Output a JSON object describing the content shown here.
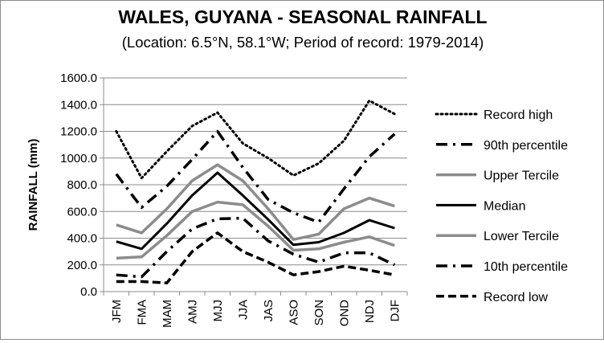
{
  "chart_data": {
    "type": "line",
    "title": "WALES, GUYANA - SEASONAL RAINFALL",
    "subtitle": "(Location: 6.5°N, 58.1°W; Period of record: 1979-2014)",
    "ylabel": "RAINFALL (mm)",
    "xlabel": "",
    "categories": [
      "JFM",
      "FMA",
      "MAM",
      "AMJ",
      "MJJ",
      "JJA",
      "JAS",
      "ASO",
      "SON",
      "OND",
      "NDJ",
      "DJF"
    ],
    "ylim": [
      0,
      1600
    ],
    "yticks": [
      "0.0",
      "200.0",
      "400.0",
      "600.0",
      "800.0",
      "1000.0",
      "1200.0",
      "1400.0",
      "1600.0"
    ],
    "grid": true,
    "legend_position": "right",
    "series": [
      {
        "name": "Record high",
        "style": "dotted",
        "color": "#000000",
        "values": [
          1200,
          850,
          1050,
          1240,
          1340,
          1110,
          1000,
          870,
          960,
          1130,
          1430,
          1330
        ]
      },
      {
        "name": "90th percentile",
        "style": "dashdot",
        "color": "#000000",
        "values": [
          880,
          630,
          790,
          990,
          1200,
          930,
          690,
          590,
          520,
          770,
          1010,
          1180
        ]
      },
      {
        "name": "Upper Tercile",
        "style": "solid",
        "color": "#8c8c8c",
        "values": [
          500,
          440,
          620,
          830,
          950,
          830,
          620,
          390,
          430,
          620,
          700,
          640
        ]
      },
      {
        "name": "Median",
        "style": "solid",
        "color": "#000000",
        "values": [
          375,
          320,
          510,
          720,
          890,
          720,
          540,
          350,
          370,
          440,
          535,
          475
        ]
      },
      {
        "name": "Lower Tercile",
        "style": "solid",
        "color": "#8c8c8c",
        "values": [
          250,
          260,
          420,
          600,
          670,
          650,
          490,
          310,
          320,
          370,
          410,
          345
        ]
      },
      {
        "name": "10th percentile",
        "style": "dashdot",
        "color": "#000000",
        "values": [
          125,
          110,
          300,
          470,
          545,
          550,
          380,
          280,
          220,
          290,
          290,
          200
        ]
      },
      {
        "name": "Record low",
        "style": "dashed",
        "color": "#000000",
        "values": [
          75,
          75,
          65,
          300,
          440,
          300,
          220,
          125,
          150,
          190,
          160,
          125
        ]
      }
    ]
  }
}
